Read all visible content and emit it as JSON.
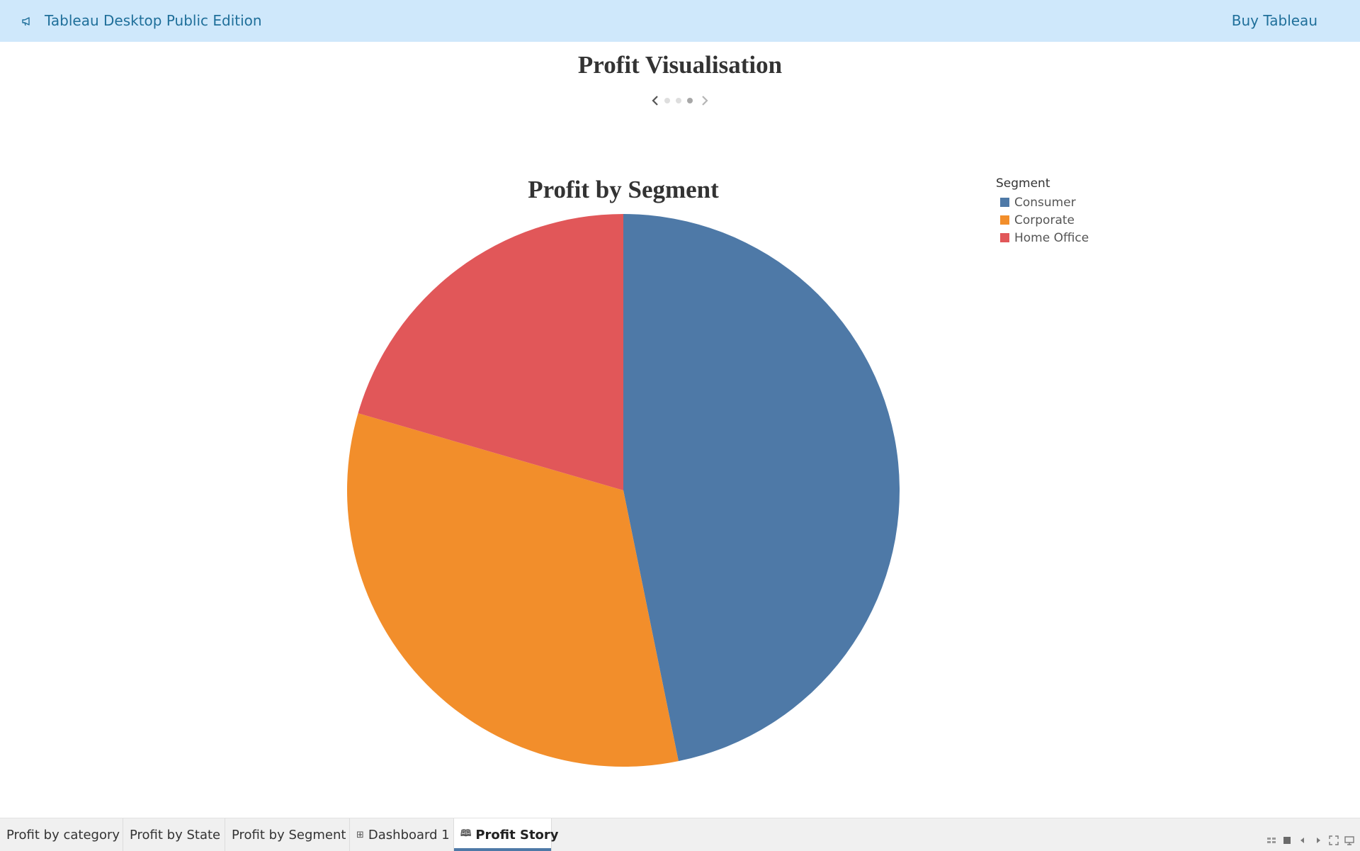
{
  "topbar": {
    "app_title": "Tableau Desktop Public Edition",
    "buy_label": "Buy Tableau",
    "accent_color": "#1f6f9a",
    "background_color": "#cfe8fb"
  },
  "story": {
    "title": "Profit Visualisation",
    "nav": {
      "points": 3,
      "active_index": 2,
      "prev_icon": "chevron-left-icon",
      "next_icon": "chevron-right-icon"
    }
  },
  "legend": {
    "title": "Segment",
    "items": [
      {
        "label": "Consumer",
        "color": "#4e79a7"
      },
      {
        "label": "Corporate",
        "color": "#f28e2b"
      },
      {
        "label": "Home Office",
        "color": "#e15759"
      }
    ]
  },
  "chart_data": {
    "type": "pie",
    "title": "Profit by Segment",
    "categories": [
      "Consumer",
      "Corporate",
      "Home Office"
    ],
    "values": [
      46.8,
      32.7,
      20.5
    ],
    "colors": [
      "#4e79a7",
      "#f28e2b",
      "#e15759"
    ],
    "start_angle_deg": 0,
    "direction": "clockwise",
    "legend_position": "top-right",
    "legend_title": "Segment"
  },
  "tabs": [
    {
      "label": "Profit by category",
      "icon": "",
      "active": false
    },
    {
      "label": "Profit by State",
      "icon": "",
      "active": false
    },
    {
      "label": "Profit by Segment",
      "icon": "",
      "active": false
    },
    {
      "label": "Dashboard 1",
      "icon": "dashboard-icon",
      "active": false
    },
    {
      "label": "Profit Story",
      "icon": "story-icon",
      "active": true
    }
  ],
  "bottom_controls": [
    "sheet-sorter-icon",
    "filmstrip-icon",
    "previous-sheet-icon",
    "next-sheet-icon",
    "fullscreen-icon",
    "presentation-mode-icon"
  ]
}
